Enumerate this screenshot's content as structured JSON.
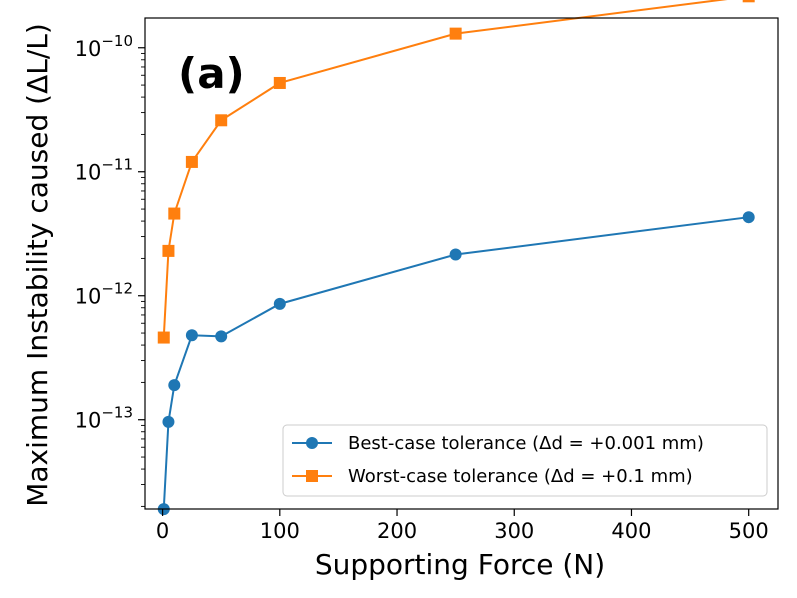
{
  "chart_data": {
    "type": "line",
    "title": "",
    "panel_label": "(a)",
    "xlabel": "Supporting Force (N)",
    "ylabel": "Maximum Instability caused (ΔL/L)",
    "yscale": "log",
    "xlim": [
      -15,
      525
    ],
    "ylim_log10": [
      -13.72,
      -9.76
    ],
    "x_ticks": [
      0,
      100,
      200,
      300,
      400,
      500
    ],
    "x_tick_labels": [
      "0",
      "100",
      "200",
      "300",
      "400",
      "500"
    ],
    "y_ticks_exponent": [
      -13,
      -12,
      -11,
      -10
    ],
    "y_tick_labels": [
      {
        "base": "10",
        "exp": "−13"
      },
      {
        "base": "10",
        "exp": "−12"
      },
      {
        "base": "10",
        "exp": "−11"
      },
      {
        "base": "10",
        "exp": "−10"
      }
    ],
    "legend_position": "lower-right",
    "series": [
      {
        "name": "Best-case tolerance (Δd = +0.001 mm)",
        "color": "#1f77b4",
        "marker": "circle",
        "x": [
          1,
          5,
          10,
          25,
          50,
          100,
          250,
          500
        ],
        "y": [
          1.9e-14,
          9.6e-14,
          1.9e-13,
          4.8e-13,
          4.7e-13,
          8.6e-13,
          2.15e-12,
          4.3e-12
        ]
      },
      {
        "name": "Worst-case tolerance (Δd = +0.1 mm)",
        "color": "#ff7f0e",
        "marker": "square",
        "x": [
          1,
          5,
          10,
          25,
          50,
          100,
          250,
          500
        ],
        "y": [
          4.6e-13,
          2.3e-12,
          4.6e-12,
          1.2e-11,
          2.6e-11,
          5.2e-11,
          1.3e-10,
          2.6e-10
        ]
      }
    ]
  }
}
